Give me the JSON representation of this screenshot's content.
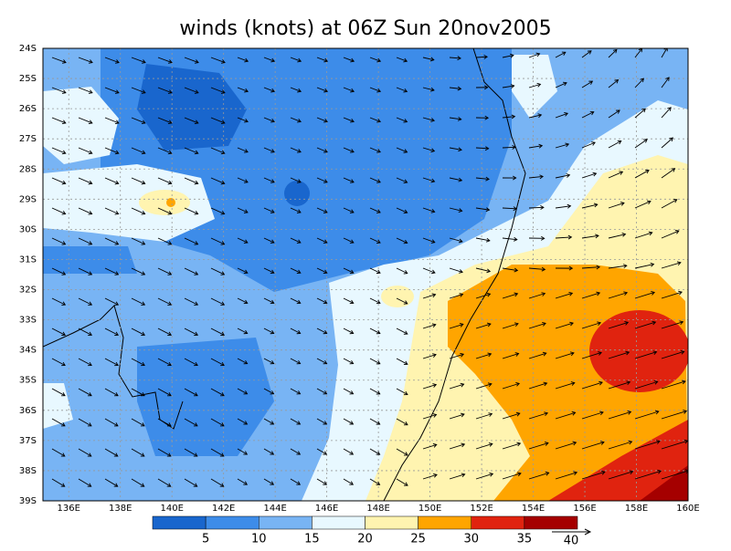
{
  "title": "winds (knots) at 06Z Sun 20nov2005",
  "map": {
    "lat_labels": [
      "24S",
      "25S",
      "26S",
      "27S",
      "28S",
      "29S",
      "30S",
      "31S",
      "32S",
      "33S",
      "34S",
      "35S",
      "36S",
      "37S",
      "38S",
      "39S"
    ],
    "lon_labels": [
      "136E",
      "138E",
      "140E",
      "142E",
      "144E",
      "146E",
      "148E",
      "150E",
      "152E",
      "154E",
      "156E",
      "158E",
      "160E"
    ]
  },
  "colorbar": {
    "labels": [
      5,
      10,
      15,
      20,
      25,
      30,
      35
    ],
    "colors": [
      "#1966cd",
      "#3d8ce9",
      "#78b4f4",
      "#e8f8ff",
      "#fff4b0",
      "#ffa500",
      "#e0230f",
      "#a50000"
    ]
  },
  "vector_reference": "40"
}
